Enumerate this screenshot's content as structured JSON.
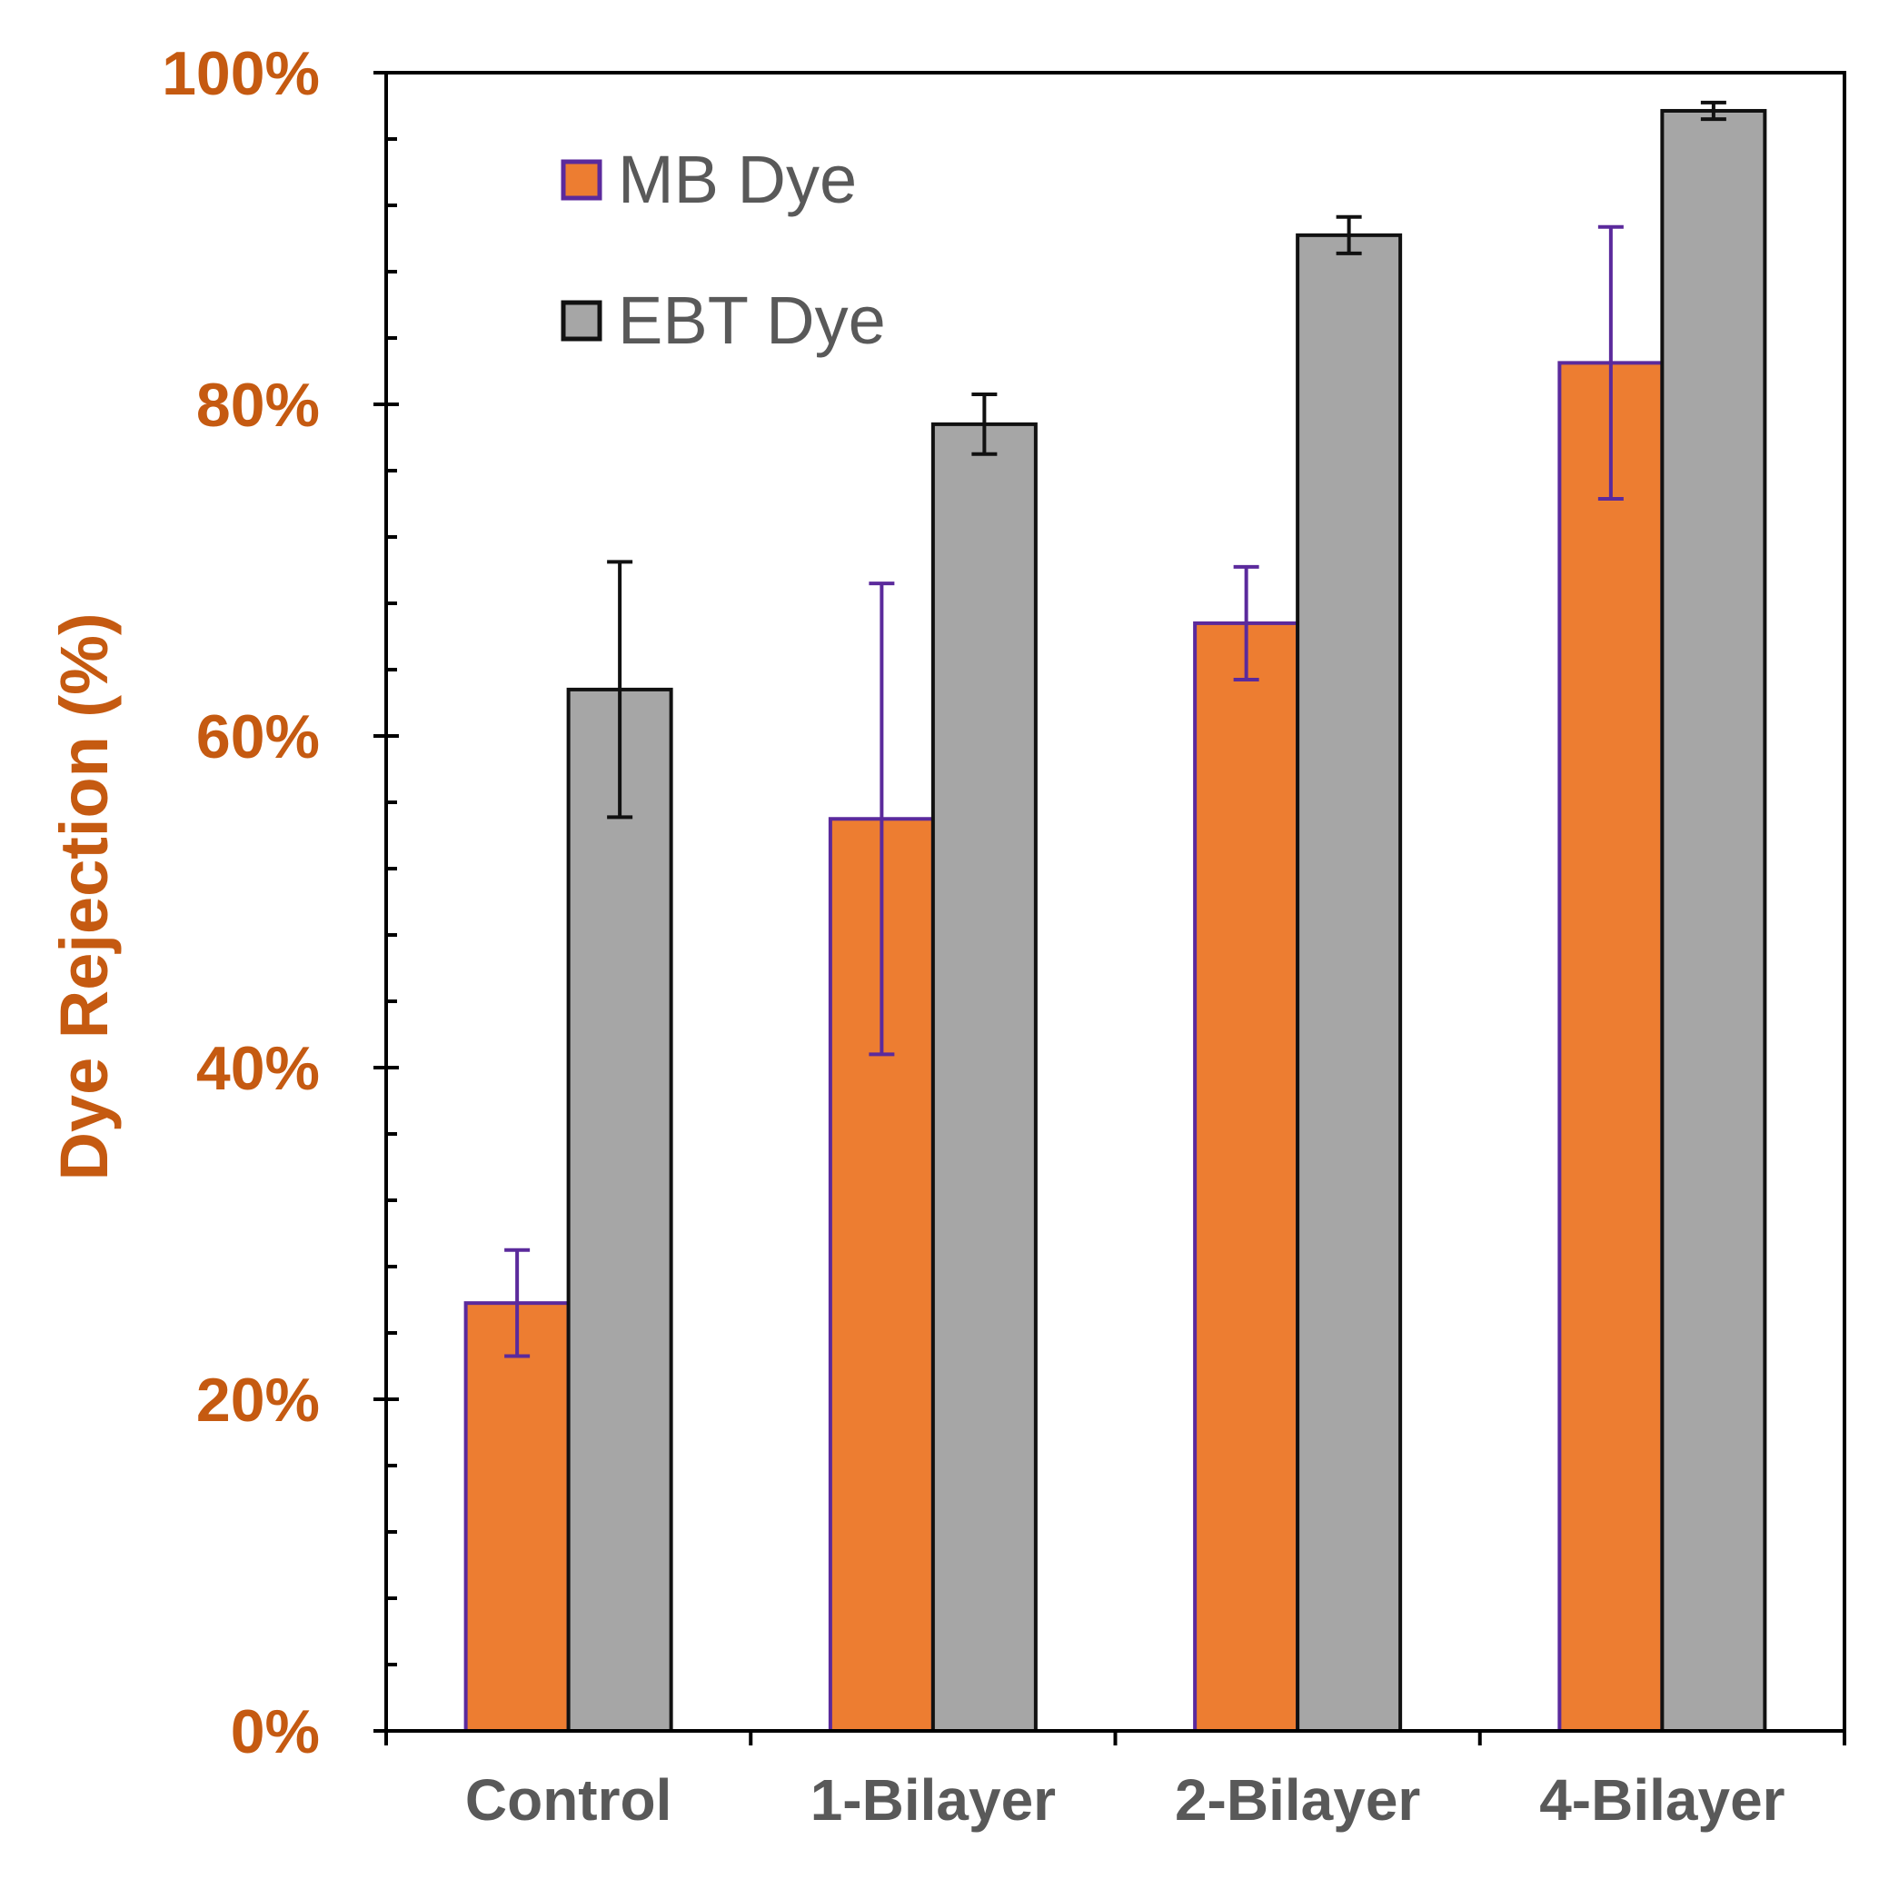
{
  "chart_data": {
    "type": "bar",
    "categories": [
      "Control",
      "1-Bilayer",
      "2-Bilayer",
      "4-Bilayer"
    ],
    "series": [
      {
        "name": "MB Dye",
        "values": [
          25.8,
          55.0,
          66.8,
          82.5
        ],
        "errors": [
          3.2,
          14.2,
          3.4,
          8.2
        ],
        "fill": "#ED7D31",
        "edge": "#5B2A9C"
      },
      {
        "name": "EBT Dye",
        "values": [
          62.8,
          78.8,
          90.2,
          97.7
        ],
        "errors": [
          7.7,
          1.8,
          1.1,
          0.5
        ],
        "fill": "#A6A6A6",
        "edge": "#111111"
      }
    ],
    "ylabel": "Dye Rejection (%)",
    "xlabel": "",
    "ylim": [
      0,
      100
    ],
    "yticks": [
      "0%",
      "20%",
      "40%",
      "60%",
      "80%",
      "100%"
    ],
    "legend_position": "top-left",
    "grid": false
  }
}
